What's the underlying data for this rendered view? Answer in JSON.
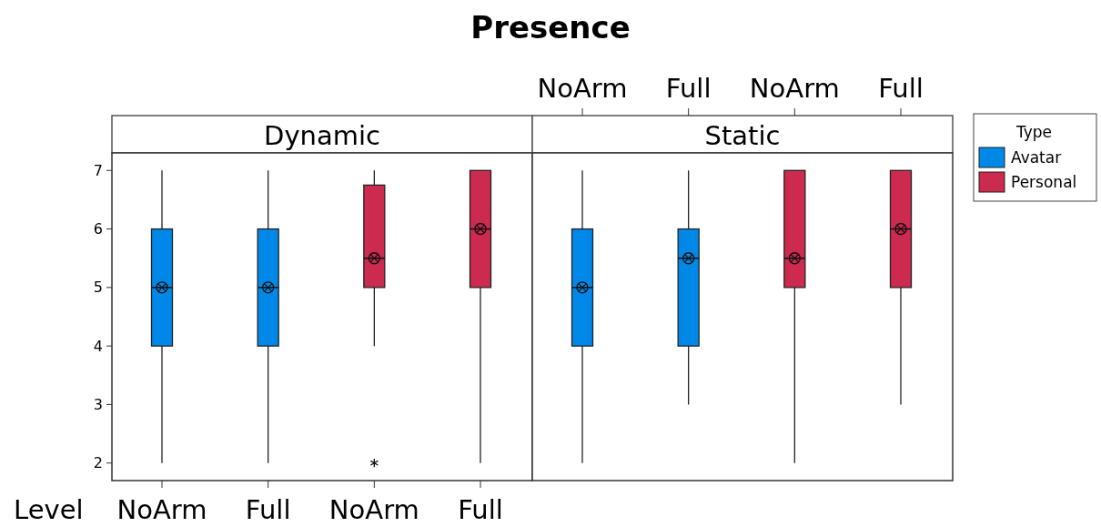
{
  "chart_data": [
    {
      "type": "box",
      "title": "Presence",
      "subtitle": "Dynamic",
      "xlabel": "Level",
      "categories": [
        "NoArm",
        "Full",
        "NoArm",
        "Full"
      ],
      "ylim": [
        1.7,
        7.3
      ],
      "yticks": [
        2,
        3,
        4,
        5,
        6,
        7
      ],
      "series": [
        {
          "color": "#0088e8",
          "boxes": [
            {
              "low": 2,
              "q1": 4,
              "median": 5,
              "q3": 6,
              "high": 7,
              "mean": 5
            },
            {
              "low": 2,
              "q1": 4,
              "median": 5,
              "q3": 6,
              "high": 7,
              "mean": 5
            },
            null,
            null
          ]
        },
        {
          "color": "#cc2a4e",
          "boxes": [
            null,
            null,
            {
              "low": 4,
              "q1": 5,
              "median": 5.5,
              "q3": 6.75,
              "high": 7,
              "mean": 5.5,
              "outliers": [
                2
              ]
            },
            {
              "low": 2,
              "q1": 5,
              "median": 6,
              "q3": 7,
              "high": 7,
              "mean": 6
            }
          ]
        }
      ]
    },
    {
      "type": "box",
      "subtitle": "Static",
      "categories": [
        "NoArm",
        "Full",
        "NoArm",
        "Full"
      ],
      "ylim": [
        1.7,
        7.3
      ],
      "tick_labels": "x",
      "legend": "right",
      "legend_title": "Type",
      "series": [
        {
          "name": "Avatar",
          "color": "#0088e8",
          "boxes": [
            {
              "low": 2,
              "q1": 4,
              "median": 5,
              "q3": 6,
              "high": 7,
              "mean": 5
            },
            {
              "low": 3,
              "q1": 4,
              "median": 5.5,
              "q3": 6,
              "high": 7,
              "mean": 5.5
            },
            null,
            null
          ]
        },
        {
          "name": "Personal",
          "color": "#cc2a4e",
          "boxes": [
            null,
            null,
            {
              "low": 2,
              "q1": 5,
              "median": 5.5,
              "q3": 7,
              "high": 7,
              "mean": 5.5
            },
            {
              "low": 3,
              "q1": 5,
              "median": 6,
              "q3": 7,
              "high": 7,
              "mean": 6
            }
          ]
        }
      ]
    }
  ]
}
